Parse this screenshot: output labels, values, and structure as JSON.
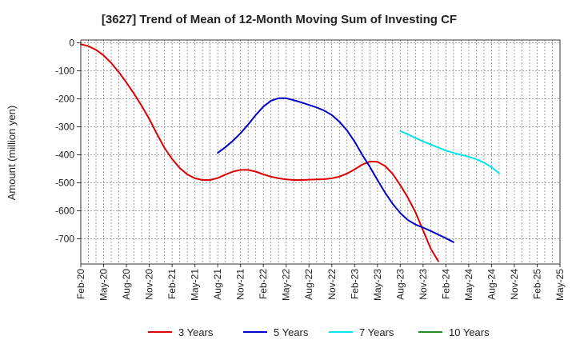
{
  "chart_data": {
    "type": "line",
    "title": "[3627]  Trend of Mean of 12-Month Moving Sum of Investing CF",
    "xlabel": "",
    "ylabel": "Amount (million yen)",
    "ylim": [
      -790,
      10
    ],
    "yticks": [
      0,
      -100,
      -200,
      -300,
      -400,
      -500,
      -600,
      -700
    ],
    "ytick_labels": [
      "0",
      "-100",
      "-200",
      "-300",
      "-400",
      "-500",
      "-600",
      "-700"
    ],
    "x_categories": [
      "Feb-20",
      "Mar-20",
      "Apr-20",
      "May-20",
      "Jun-20",
      "Jul-20",
      "Aug-20",
      "Sep-20",
      "Oct-20",
      "Nov-20",
      "Dec-20",
      "Jan-21",
      "Feb-21",
      "Mar-21",
      "Apr-21",
      "May-21",
      "Jun-21",
      "Jul-21",
      "Aug-21",
      "Sep-21",
      "Oct-21",
      "Nov-21",
      "Dec-21",
      "Jan-22",
      "Feb-22",
      "Mar-22",
      "Apr-22",
      "May-22",
      "Jun-22",
      "Jul-22",
      "Aug-22",
      "Sep-22",
      "Oct-22",
      "Nov-22",
      "Dec-22",
      "Jan-23",
      "Feb-23",
      "Mar-23",
      "Apr-23",
      "May-23",
      "Jun-23",
      "Jul-23",
      "Aug-23",
      "Sep-23",
      "Oct-23",
      "Nov-23",
      "Dec-23",
      "Jan-24",
      "Feb-24",
      "Mar-24",
      "Apr-24",
      "May-24",
      "Jun-24",
      "Jul-24",
      "Aug-24",
      "Sep-24",
      "Oct-24",
      "Nov-24",
      "Dec-24",
      "Jan-25",
      "Feb-25",
      "Mar-25",
      "Apr-25",
      "May-25"
    ],
    "xtick_labels": [
      "Feb-20",
      "May-20",
      "Aug-20",
      "Nov-20",
      "Feb-21",
      "May-21",
      "Aug-21",
      "Nov-21",
      "Feb-22",
      "May-22",
      "Aug-22",
      "Nov-22",
      "Feb-23",
      "May-23",
      "Aug-23",
      "Nov-23",
      "Feb-24",
      "May-24",
      "Aug-24",
      "Nov-24",
      "Feb-25",
      "May-25"
    ],
    "grid": true,
    "legend_position": "bottom",
    "series": [
      {
        "name": "3 Years",
        "color": "#dd0000",
        "start_index": 0,
        "values": [
          -5,
          -12,
          -25,
          -45,
          -72,
          -105,
          -142,
          -182,
          -225,
          -272,
          -325,
          -375,
          -415,
          -447,
          -470,
          -484,
          -490,
          -490,
          -483,
          -471,
          -460,
          -454,
          -454,
          -460,
          -470,
          -478,
          -484,
          -488,
          -490,
          -490,
          -489,
          -488,
          -487,
          -484,
          -478,
          -467,
          -452,
          -435,
          -424,
          -425,
          -440,
          -468,
          -508,
          -553,
          -605,
          -670,
          -735,
          -780
        ]
      },
      {
        "name": "5 Years",
        "color": "#0000cc",
        "start_index": 18,
        "values": [
          -393,
          -373,
          -350,
          -323,
          -292,
          -258,
          -228,
          -207,
          -198,
          -198,
          -205,
          -213,
          -222,
          -231,
          -242,
          -258,
          -282,
          -313,
          -353,
          -400,
          -443,
          -490,
          -535,
          -575,
          -608,
          -633,
          -649,
          -660,
          -672,
          -685,
          -698,
          -712
        ]
      },
      {
        "name": "7 Years",
        "color": "#00e5ee",
        "start_index": 42,
        "values": [
          -315,
          -327,
          -340,
          -352,
          -363,
          -374,
          -385,
          -393,
          -400,
          -407,
          -416,
          -428,
          -444,
          -466
        ]
      },
      {
        "name": "10 Years",
        "color": "#228b22",
        "start_index": 0,
        "values": []
      }
    ]
  }
}
